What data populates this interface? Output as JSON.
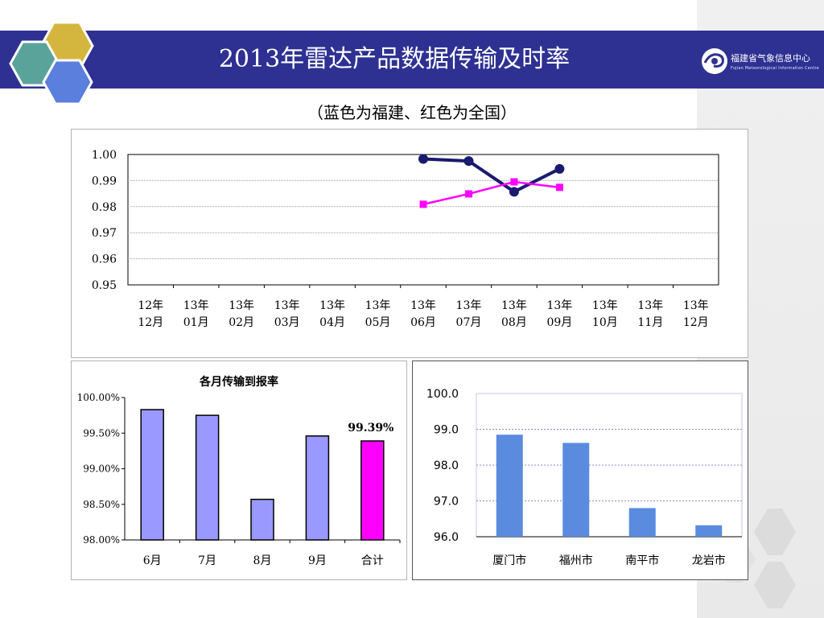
{
  "slide": {
    "title": "2013年雷达产品数据传输及时率",
    "subtitle": "（蓝色为福建、红色为全国）",
    "logo": {
      "name": "福建省气象信息中心",
      "english": "Fujian Meteorological Information Centre"
    }
  },
  "colors": {
    "header": "#2e3192",
    "fujian_line": "#1a1a6e",
    "national_line": "#ff00ff",
    "bar_month": "#9999ff",
    "bar_total": "#ff00ff",
    "bar_city": "#5b8bde"
  },
  "chart_data": [
    {
      "type": "line",
      "title": "",
      "categories": [
        "12年\n12月",
        "13年\n01月",
        "13年\n02月",
        "13年\n03月",
        "13年\n04月",
        "13年\n05月",
        "13年\n06月",
        "13年\n07月",
        "13年\n08月",
        "13年\n09月",
        "13年\n10月",
        "13年\n11月",
        "13年\n12月"
      ],
      "y_ticks": [
        "0.95",
        "0.96",
        "0.97",
        "0.98",
        "0.99",
        "1.00"
      ],
      "ylim": [
        0.95,
        1.0
      ],
      "grid": true,
      "series": [
        {
          "values": [
            null,
            null,
            null,
            null,
            null,
            null,
            0.9983,
            0.9975,
            0.9857,
            0.9945,
            null,
            null,
            null
          ],
          "color": "#1a1a6e",
          "marker": "circle"
        },
        {
          "values": [
            null,
            null,
            null,
            null,
            null,
            null,
            0.9809,
            0.9849,
            0.9895,
            0.9874,
            null,
            null,
            null
          ],
          "color": "#ff00ff",
          "marker": "square"
        }
      ]
    },
    {
      "type": "bar",
      "title": "各月传输到报率",
      "categories": [
        "6月",
        "7月",
        "8月",
        "9月",
        "合计"
      ],
      "values": [
        99.83,
        99.75,
        98.57,
        99.46,
        99.39
      ],
      "data_labels": [
        "",
        "",
        "",
        "",
        "99.39%"
      ],
      "y_ticks": [
        "98.00%",
        "98.50%",
        "99.00%",
        "99.50%",
        "100.00%"
      ],
      "ylim": [
        98.0,
        100.0
      ],
      "bar_colors": [
        "#9999ff",
        "#9999ff",
        "#9999ff",
        "#9999ff",
        "#ff00ff"
      ]
    },
    {
      "type": "bar",
      "title": "",
      "categories": [
        "厦门市",
        "福州市",
        "南平市",
        "龙岩市"
      ],
      "values": [
        98.85,
        98.62,
        96.8,
        96.32
      ],
      "y_ticks": [
        "96.0",
        "97.0",
        "98.0",
        "99.0",
        "100.0"
      ],
      "ylim": [
        96.0,
        100.0
      ],
      "grid": true,
      "bar_color": "#5b8bde"
    }
  ]
}
